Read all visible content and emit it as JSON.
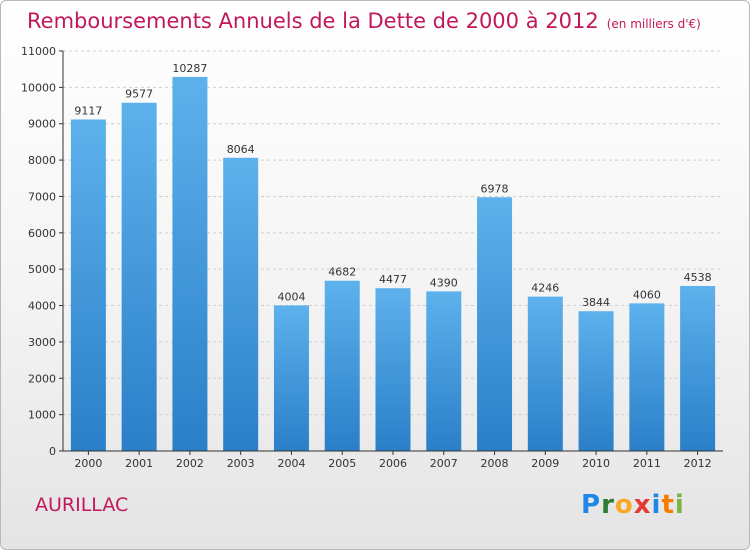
{
  "title": "Remboursements Annuels de la Dette de 2000 à 2012",
  "unit_note": "(en milliers d'€)",
  "city": "AURILLAC",
  "logo": {
    "letters": [
      "P",
      "r",
      "o",
      "x",
      "i",
      "t",
      "i"
    ],
    "colors": [
      "#1e88e5",
      "#2e7d32",
      "#f9a825",
      "#e53935",
      "#1e88e5",
      "#f57c00",
      "#7cb342"
    ]
  },
  "colors": {
    "bar_top": "#5db1ec",
    "bar_bottom": "#2a7fc8",
    "title": "#c2185b",
    "grid": "#cfcfcf",
    "axis": "#333333"
  },
  "chart_data": {
    "type": "bar",
    "title": "Remboursements Annuels de la Dette de 2000 à 2012",
    "subtitle": "(en milliers d'€)",
    "categories": [
      "2000",
      "2001",
      "2002",
      "2003",
      "2004",
      "2005",
      "2006",
      "2007",
      "2008",
      "2009",
      "2010",
      "2011",
      "2012"
    ],
    "values": [
      9117,
      9577,
      10287,
      8064,
      4004,
      4682,
      4477,
      4390,
      6978,
      4246,
      3844,
      4060,
      4538
    ],
    "ylim": [
      0,
      11000
    ],
    "yticks": [
      0,
      1000,
      2000,
      3000,
      4000,
      5000,
      6000,
      7000,
      8000,
      9000,
      10000,
      11000
    ],
    "grid": true,
    "data_labels": true
  }
}
